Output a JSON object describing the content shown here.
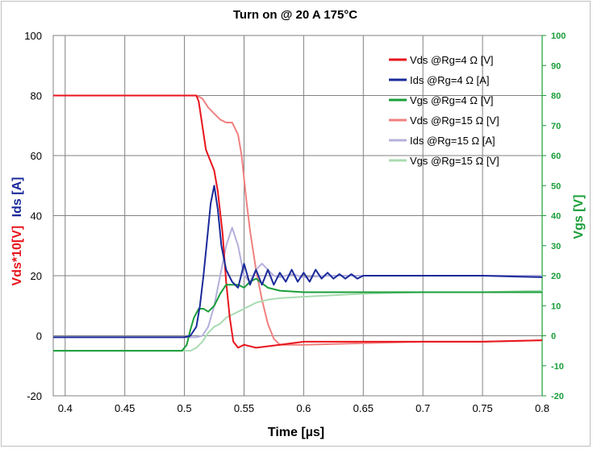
{
  "chart_data": {
    "type": "line",
    "title": "Turn on @ 20 A 175°C",
    "xlabel": "Time [µs]",
    "ylabel_left_parts": [
      {
        "text": "Vds*10[V]",
        "color": "#e8141c"
      },
      {
        "text": "Ids [A]",
        "color": "#1a2a9a"
      }
    ],
    "ylabel_right": "Vgs [V]",
    "xlim": [
      0.39,
      0.8
    ],
    "ylim_left": [
      -20,
      100
    ],
    "ylim_right": [
      -20,
      100
    ],
    "x_ticks": [
      "0.4",
      "0.45",
      "0.5",
      "0.55",
      "0.6",
      "0.65",
      "0.7",
      "0.75",
      "0.8"
    ],
    "x_tick_values": [
      0.4,
      0.45,
      0.5,
      0.55,
      0.6,
      0.65,
      0.7,
      0.75,
      0.8
    ],
    "y_ticks_left": [
      "-20",
      "0",
      "20",
      "40",
      "60",
      "80",
      "100"
    ],
    "y_tick_values_left": [
      -20,
      0,
      20,
      40,
      60,
      80,
      100
    ],
    "y_ticks_right": [
      "-20",
      "-10",
      "0",
      "10",
      "20",
      "30",
      "40",
      "50",
      "60",
      "70",
      "80",
      "90",
      "100"
    ],
    "y_tick_values_right": [
      -20,
      -10,
      0,
      10,
      20,
      30,
      40,
      50,
      60,
      70,
      80,
      90,
      100
    ],
    "legend_position": "top-right",
    "series": [
      {
        "name": "Vds @Rg=4 Ω [V]",
        "color": "#e8141c",
        "x": [
          0.39,
          0.45,
          0.5,
          0.505,
          0.51,
          0.512,
          0.515,
          0.518,
          0.522,
          0.525,
          0.528,
          0.532,
          0.535,
          0.538,
          0.541,
          0.545,
          0.55,
          0.56,
          0.58,
          0.6,
          0.65,
          0.7,
          0.75,
          0.8
        ],
        "y": [
          80,
          80,
          80,
          80,
          80,
          78,
          70,
          62,
          58,
          55,
          48,
          34,
          18,
          6,
          -2,
          -4,
          -3,
          -4,
          -3,
          -2,
          -2,
          -2,
          -2,
          -1.5
        ]
      },
      {
        "name": "Ids @Rg=4 Ω [A]",
        "color": "#1a2a9a",
        "x": [
          0.39,
          0.5,
          0.505,
          0.51,
          0.513,
          0.516,
          0.519,
          0.522,
          0.525,
          0.528,
          0.531,
          0.535,
          0.54,
          0.545,
          0.55,
          0.555,
          0.56,
          0.565,
          0.57,
          0.575,
          0.58,
          0.585,
          0.59,
          0.595,
          0.6,
          0.605,
          0.61,
          0.615,
          0.62,
          0.625,
          0.63,
          0.635,
          0.64,
          0.645,
          0.65,
          0.66,
          0.67,
          0.68,
          0.69,
          0.7,
          0.72,
          0.75,
          0.8
        ],
        "y": [
          -0.5,
          -0.5,
          0,
          3,
          10,
          20,
          32,
          44,
          50,
          42,
          30,
          22,
          18,
          16,
          24,
          17,
          22,
          17,
          22,
          17,
          21,
          18,
          22,
          18,
          21,
          18,
          22,
          19,
          21,
          19,
          20.5,
          19,
          20.5,
          19,
          20,
          20,
          20,
          20,
          20,
          20,
          20,
          20,
          19.5
        ]
      },
      {
        "name": "Vgs @Rg=4 Ω [V]",
        "color": "#1a9e3a",
        "x": [
          0.39,
          0.49,
          0.498,
          0.502,
          0.505,
          0.508,
          0.512,
          0.516,
          0.52,
          0.525,
          0.53,
          0.535,
          0.54,
          0.545,
          0.55,
          0.555,
          0.56,
          0.57,
          0.58,
          0.6,
          0.65,
          0.7,
          0.75,
          0.8
        ],
        "y": [
          -5,
          -5,
          -5,
          -3,
          2,
          6,
          9,
          9,
          8,
          10,
          14,
          17,
          17,
          17,
          16,
          18,
          19,
          16,
          15,
          14.5,
          14.5,
          14.5,
          14.5,
          14.5
        ]
      },
      {
        "name": "Vds @Rg=15 Ω [V]",
        "color": "#f08080",
        "x": [
          0.39,
          0.5,
          0.51,
          0.515,
          0.52,
          0.525,
          0.53,
          0.535,
          0.54,
          0.545,
          0.548,
          0.552,
          0.555,
          0.56,
          0.565,
          0.57,
          0.575,
          0.58,
          0.6,
          0.65,
          0.7,
          0.75,
          0.8
        ],
        "y": [
          80,
          80,
          80,
          79,
          76,
          74,
          72,
          71,
          71,
          67,
          60,
          45,
          35,
          22,
          12,
          4,
          -1,
          -3,
          -3,
          -2.5,
          -2,
          -2,
          -1.5
        ]
      },
      {
        "name": "Ids @Rg=15 Ω [A]",
        "color": "#b4b0dc",
        "x": [
          0.39,
          0.5,
          0.51,
          0.515,
          0.52,
          0.525,
          0.53,
          0.535,
          0.54,
          0.545,
          0.55,
          0.555,
          0.56,
          0.565,
          0.57,
          0.575,
          0.58,
          0.59,
          0.6,
          0.62,
          0.65,
          0.7,
          0.75,
          0.8
        ],
        "y": [
          -0.5,
          -0.5,
          -0.5,
          0,
          3,
          10,
          20,
          30,
          36,
          30,
          20,
          18,
          22,
          24,
          22,
          20,
          19.5,
          20.5,
          19.5,
          20,
          20,
          20,
          20,
          20
        ]
      },
      {
        "name": "Vgs @Rg=15 Ω [V]",
        "color": "#a8dcb0",
        "x": [
          0.39,
          0.5,
          0.505,
          0.51,
          0.515,
          0.52,
          0.525,
          0.53,
          0.535,
          0.54,
          0.545,
          0.55,
          0.555,
          0.56,
          0.57,
          0.58,
          0.6,
          0.65,
          0.7,
          0.75,
          0.8
        ],
        "y": [
          -5,
          -5,
          -5,
          -4,
          -2,
          1,
          3,
          4,
          6,
          7,
          8,
          9,
          10,
          11,
          12,
          12.5,
          13,
          14,
          14.5,
          14.5,
          15
        ]
      }
    ]
  }
}
